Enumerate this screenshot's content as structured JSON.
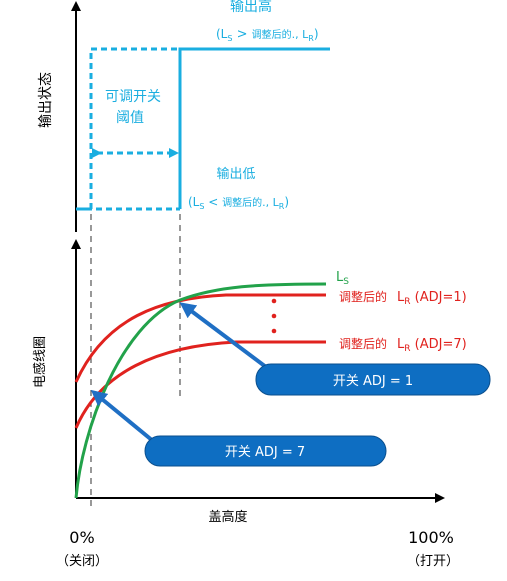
{
  "top_panel": {
    "y_axis_label": "输出状态",
    "output_high": "输出高",
    "high_condition": {
      "open": "(L",
      "sub_s": "S",
      "op": " > ",
      "text": "调整后的",
      "mark": "., L",
      "sub_r": "R",
      "close": ")"
    },
    "output_low": "输出低",
    "low_condition": {
      "open": "(L",
      "sub_s": "S",
      "op": " < ",
      "text": "调整后的",
      "mark": "., L",
      "sub_r": "R",
      "close": ")"
    },
    "threshold_line1": "可调开关",
    "threshold_line2": "阈值"
  },
  "bottom_panel": {
    "y_axis_label": "电感线圈",
    "x_axis_label": "盖高度",
    "ls_label": "L",
    "ls_sub": "S",
    "lr1_prefix": "调整后的",
    "lr1_main": "L",
    "lr1_sub": "R",
    "lr1_suffix": " (ADJ=1)",
    "lr7_prefix": "调整后的",
    "lr7_main": "L",
    "lr7_sub": "R",
    "lr7_suffix": " (ADJ=7)",
    "callout_adj1": "开关 ADJ = 1",
    "callout_adj7": "开关 ADJ = 7",
    "x_min_value": "0%",
    "x_min_note": "（关闭）",
    "x_max_value": "100%",
    "x_max_note": "（打开）"
  },
  "colors": {
    "cyan": "#1aaee0",
    "green": "#22a24a",
    "red": "#e0221e",
    "callout_fill": "#0e6ec2",
    "arrow_blue": "#1f6fc4",
    "axis": "#000000"
  }
}
